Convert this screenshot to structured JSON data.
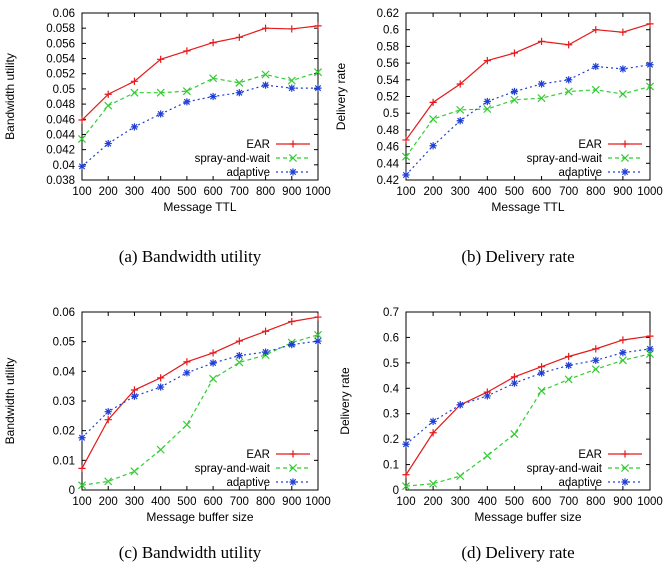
{
  "chart_data": [
    {
      "type": "line",
      "caption": "(a) Bandwidth utility",
      "xlabel": "Message TTL",
      "ylabel": "Bandwidth utility",
      "x": [
        100,
        200,
        300,
        400,
        500,
        600,
        700,
        800,
        900,
        1000
      ],
      "xlim": [
        100,
        1000
      ],
      "ylim": [
        0.038,
        0.06
      ],
      "xticks": [
        "100",
        "200",
        "300",
        "400",
        "500",
        "600",
        "700",
        "800",
        "900",
        "1000"
      ],
      "yticks": [
        "0.038",
        "0.04",
        "0.042",
        "0.044",
        "0.046",
        "0.048",
        "0.05",
        "0.052",
        "0.054",
        "0.056",
        "0.058",
        "0.06"
      ],
      "grid": false,
      "legend": "bottom-right",
      "series": [
        {
          "name": "EAR",
          "values": [
            0.0459,
            0.0493,
            0.051,
            0.0539,
            0.055,
            0.0561,
            0.0568,
            0.058,
            0.0579,
            0.0583
          ]
        },
        {
          "name": "spray-and-wait",
          "values": [
            0.0434,
            0.0478,
            0.0495,
            0.0495,
            0.0497,
            0.0514,
            0.0508,
            0.0519,
            0.0511,
            0.0522
          ]
        },
        {
          "name": "adaptive",
          "values": [
            0.0398,
            0.0428,
            0.045,
            0.0467,
            0.0483,
            0.049,
            0.0495,
            0.0505,
            0.0501,
            0.0501
          ]
        }
      ]
    },
    {
      "type": "line",
      "caption": "(b) Delivery rate",
      "xlabel": "Message TTL",
      "ylabel": "Delivery rate",
      "x": [
        100,
        200,
        300,
        400,
        500,
        600,
        700,
        800,
        900,
        1000
      ],
      "xlim": [
        100,
        1000
      ],
      "ylim": [
        0.42,
        0.62
      ],
      "xticks": [
        "100",
        "200",
        "300",
        "400",
        "500",
        "600",
        "700",
        "800",
        "900",
        "1000"
      ],
      "yticks": [
        "0.42",
        "0.44",
        "0.46",
        "0.48",
        "0.5",
        "0.52",
        "0.54",
        "0.56",
        "0.58",
        "0.6",
        "0.62"
      ],
      "grid": false,
      "legend": "bottom-right",
      "series": [
        {
          "name": "EAR",
          "values": [
            0.468,
            0.513,
            0.535,
            0.563,
            0.572,
            0.586,
            0.582,
            0.6,
            0.597,
            0.607
          ]
        },
        {
          "name": "spray-and-wait",
          "values": [
            0.448,
            0.493,
            0.504,
            0.505,
            0.516,
            0.518,
            0.526,
            0.528,
            0.523,
            0.532
          ]
        },
        {
          "name": "adaptive",
          "values": [
            0.426,
            0.461,
            0.491,
            0.514,
            0.526,
            0.535,
            0.54,
            0.556,
            0.553,
            0.558
          ]
        }
      ]
    },
    {
      "type": "line",
      "caption": "(c) Bandwidth utility",
      "xlabel": "Message buffer size",
      "ylabel": "Bandwidth utility",
      "x": [
        100,
        200,
        300,
        400,
        500,
        600,
        700,
        800,
        900,
        1000
      ],
      "xlim": [
        100,
        1000
      ],
      "ylim": [
        0,
        0.06
      ],
      "xticks": [
        "100",
        "200",
        "300",
        "400",
        "500",
        "600",
        "700",
        "800",
        "900",
        "1000"
      ],
      "yticks": [
        "0",
        "0.01",
        "0.02",
        "0.03",
        "0.04",
        "0.05",
        "0.06"
      ],
      "grid": false,
      "legend": "bottom-right",
      "series": [
        {
          "name": "EAR",
          "values": [
            0.0073,
            0.0237,
            0.0337,
            0.0378,
            0.0432,
            0.0462,
            0.0502,
            0.0535,
            0.0568,
            0.0583
          ]
        },
        {
          "name": "spray-and-wait",
          "values": [
            0.0016,
            0.0029,
            0.0063,
            0.0136,
            0.022,
            0.0375,
            0.043,
            0.0455,
            0.0497,
            0.0523
          ]
        },
        {
          "name": "adaptive",
          "values": [
            0.0176,
            0.0264,
            0.0316,
            0.0347,
            0.0395,
            0.0428,
            0.0453,
            0.0465,
            0.049,
            0.0502
          ]
        }
      ]
    },
    {
      "type": "line",
      "caption": "(d) Delivery rate",
      "xlabel": "Message buffer size",
      "ylabel": "Delivery rate",
      "x": [
        100,
        200,
        300,
        400,
        500,
        600,
        700,
        800,
        900,
        1000
      ],
      "xlim": [
        100,
        1000
      ],
      "ylim": [
        0,
        0.7
      ],
      "xticks": [
        "100",
        "200",
        "300",
        "400",
        "500",
        "600",
        "700",
        "800",
        "900",
        "1000"
      ],
      "yticks": [
        "0",
        "0.1",
        "0.2",
        "0.3",
        "0.4",
        "0.5",
        "0.6",
        "0.7"
      ],
      "grid": false,
      "legend": "bottom-right",
      "series": [
        {
          "name": "EAR",
          "values": [
            0.06,
            0.225,
            0.335,
            0.385,
            0.445,
            0.485,
            0.525,
            0.555,
            0.59,
            0.605
          ]
        },
        {
          "name": "spray-and-wait",
          "values": [
            0.015,
            0.025,
            0.055,
            0.135,
            0.22,
            0.39,
            0.435,
            0.475,
            0.51,
            0.535
          ]
        },
        {
          "name": "adaptive",
          "values": [
            0.18,
            0.27,
            0.335,
            0.37,
            0.42,
            0.46,
            0.49,
            0.51,
            0.54,
            0.555
          ]
        }
      ]
    }
  ],
  "style": {
    "series_colors": [
      "#e41a1c",
      "#33cc33",
      "#1f3fd6"
    ],
    "series_dash": [
      "none",
      "4,3",
      "2,3"
    ],
    "series_markers": [
      "plus",
      "cross",
      "star"
    ]
  }
}
